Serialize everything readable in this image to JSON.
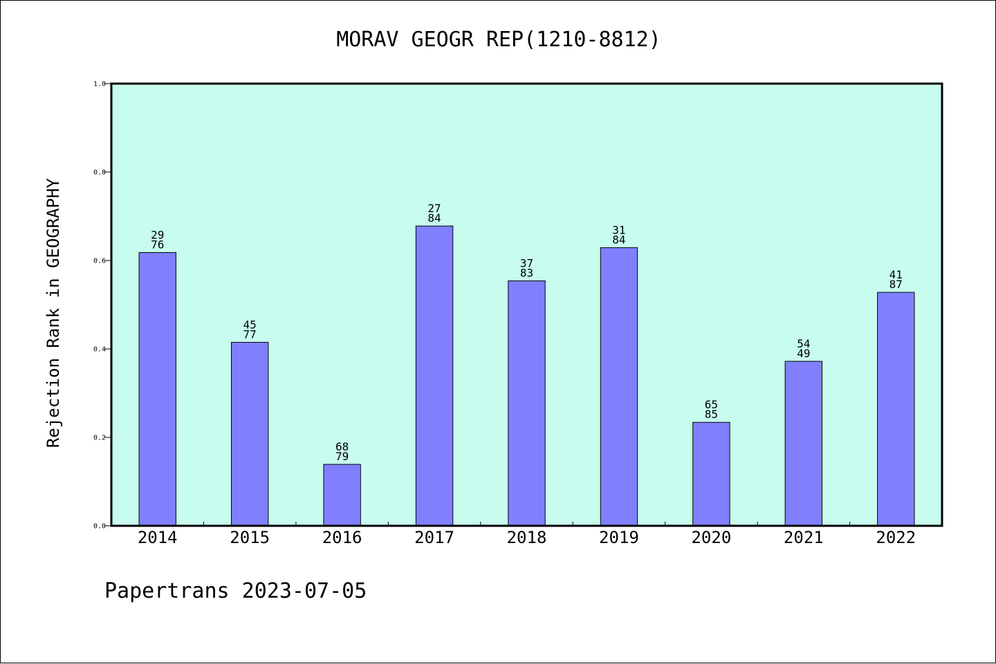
{
  "footer": "Papertrans 2023-07-05",
  "colors": {
    "plot_background": "#c8fcee",
    "bar_fill": "#8080ff",
    "bar_stroke": "#000000"
  },
  "chart_data": {
    "type": "bar",
    "title": "MORAV GEOGR REP(1210-8812)",
    "xlabel": "",
    "ylabel": "Rejection Rank in GEOGRAPHY",
    "ylim": [
      0,
      1.0
    ],
    "yticks": [
      "0.0",
      "0.2",
      "0.4",
      "0.6",
      "0.8",
      "1.0"
    ],
    "grid": false,
    "categories": [
      "2014",
      "2015",
      "2016",
      "2017",
      "2018",
      "2019",
      "2020",
      "2021",
      "2022"
    ],
    "values": [
      0.618,
      0.415,
      0.139,
      0.678,
      0.554,
      0.629,
      0.234,
      0.372,
      0.528
    ],
    "label_top": [
      "29",
      "45",
      "68",
      "27",
      "37",
      "31",
      "65",
      "54",
      "41"
    ],
    "label_bottom": [
      "76",
      "77",
      "79",
      "84",
      "83",
      "84",
      "85",
      "49",
      "87"
    ]
  }
}
